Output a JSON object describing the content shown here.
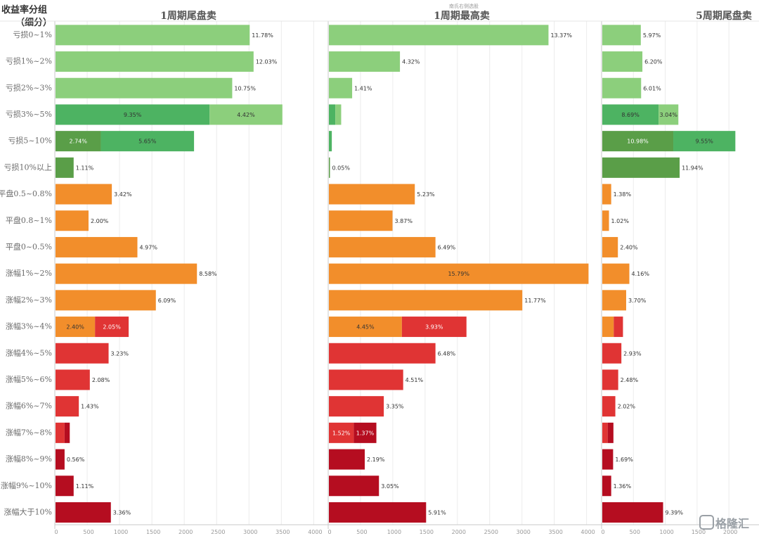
{
  "corner_title": "收益率分组",
  "corner_title_sub": "（细分）",
  "top_note": "南氏右侧选股",
  "watermark": "格隆汇",
  "colors": {
    "light_green": "#8ccf7c",
    "mid_green": "#4db362",
    "dark_green": "#5a9e48",
    "orange": "#f28e2b",
    "red": "#e03434",
    "dark_red": "#b50d20"
  },
  "chart_data": {
    "type": "bar",
    "orientation": "horizontal",
    "stacked": true,
    "categories": [
      "亏损0~1%",
      "亏损1%~2%",
      "亏损2%~3%",
      "亏损3%~5%",
      "亏损5~10%",
      "亏损10%以上",
      "平盘0.5~0.8%",
      "平盘0.8~1%",
      "平盘0~0.5%",
      "涨幅1%~2%",
      "涨幅2%~3%",
      "涨幅3%~4%",
      "涨幅4%~5%",
      "涨幅5%~6%",
      "涨幅6%~7%",
      "涨幅7%~8%",
      "涨幅8%~9%",
      "涨幅9%~10%",
      "涨幅大于10%"
    ],
    "panels": [
      {
        "title": "1周期尾盘卖",
        "xlim": [
          0,
          4000
        ],
        "ticks": [
          "0",
          "500",
          "1000",
          "1500",
          "2000",
          "2500",
          "3000",
          "3500",
          "4000"
        ],
        "rows": [
          [
            {
              "v": 3000,
              "c": "light_green",
              "label": "11.78%"
            }
          ],
          [
            {
              "v": 3060,
              "c": "light_green",
              "label": "12.03%"
            }
          ],
          [
            {
              "v": 2730,
              "c": "light_green",
              "label": "10.75%"
            }
          ],
          [
            {
              "v": 2380,
              "c": "mid_green",
              "label": "9.35%",
              "in": true
            },
            {
              "v": 1125,
              "c": "light_green",
              "label": "4.42%",
              "in": true
            }
          ],
          [
            {
              "v": 700,
              "c": "dark_green",
              "label": "2.74%",
              "in": true,
              "white": true
            },
            {
              "v": 1440,
              "c": "mid_green",
              "label": "5.65%",
              "in": true
            }
          ],
          [
            {
              "v": 280,
              "c": "dark_green",
              "label": "1.11%"
            }
          ],
          [
            {
              "v": 870,
              "c": "orange",
              "label": "3.42%"
            }
          ],
          [
            {
              "v": 510,
              "c": "orange",
              "label": "2.00%"
            }
          ],
          [
            {
              "v": 1265,
              "c": "orange",
              "label": "4.97%"
            }
          ],
          [
            {
              "v": 2185,
              "c": "orange",
              "label": "8.58%"
            }
          ],
          [
            {
              "v": 1550,
              "c": "orange",
              "label": "6.09%"
            }
          ],
          [
            {
              "v": 610,
              "c": "orange",
              "label": "2.40%",
              "in": true
            },
            {
              "v": 520,
              "c": "red",
              "label": "2.05%",
              "in": true,
              "white": true
            }
          ],
          [
            {
              "v": 820,
              "c": "red",
              "label": "3.23%"
            }
          ],
          [
            {
              "v": 530,
              "c": "red",
              "label": "2.08%"
            }
          ],
          [
            {
              "v": 360,
              "c": "red",
              "label": "1.43%"
            }
          ],
          [
            {
              "v": 140,
              "c": "red"
            },
            {
              "v": 80,
              "c": "dark_red"
            }
          ],
          [
            {
              "v": 140,
              "c": "dark_red",
              "label": "0.56%"
            }
          ],
          [
            {
              "v": 280,
              "c": "dark_red",
              "label": "1.11%"
            }
          ],
          [
            {
              "v": 855,
              "c": "dark_red",
              "label": "3.36%"
            }
          ]
        ]
      },
      {
        "title": "1周期最高卖",
        "xlim": [
          0,
          4000
        ],
        "ticks": [
          "0",
          "500",
          "1000",
          "1500",
          "2000",
          "2500",
          "3000",
          "3500",
          "4000"
        ],
        "rows": [
          [
            {
              "v": 3400,
              "c": "light_green",
              "label": "13.37%"
            }
          ],
          [
            {
              "v": 1100,
              "c": "light_green",
              "label": "4.32%"
            }
          ],
          [
            {
              "v": 360,
              "c": "light_green",
              "label": "1.41%"
            }
          ],
          [
            {
              "v": 100,
              "c": "mid_green"
            },
            {
              "v": 90,
              "c": "light_green"
            }
          ],
          [
            {
              "v": 45,
              "c": "mid_green"
            }
          ],
          [
            {
              "v": 12,
              "c": "dark_green",
              "label": "0.05%"
            }
          ],
          [
            {
              "v": 1330,
              "c": "orange",
              "label": "5.23%"
            }
          ],
          [
            {
              "v": 985,
              "c": "orange",
              "label": "3.87%"
            }
          ],
          [
            {
              "v": 1650,
              "c": "orange",
              "label": "6.49%"
            }
          ],
          [
            {
              "v": 4020,
              "c": "orange",
              "label": "15.79%",
              "in": true
            }
          ],
          [
            {
              "v": 2995,
              "c": "orange",
              "label": "11.77%"
            }
          ],
          [
            {
              "v": 1130,
              "c": "orange",
              "label": "4.45%",
              "in": true
            },
            {
              "v": 1000,
              "c": "red",
              "label": "3.93%",
              "in": true,
              "white": true
            }
          ],
          [
            {
              "v": 1650,
              "c": "red",
              "label": "6.48%"
            }
          ],
          [
            {
              "v": 1150,
              "c": "red",
              "label": "4.51%"
            }
          ],
          [
            {
              "v": 850,
              "c": "red",
              "label": "3.35%"
            }
          ],
          [
            {
              "v": 385,
              "c": "red",
              "label": "1.52%",
              "in": true,
              "white": true
            },
            {
              "v": 350,
              "c": "dark_red",
              "label": "1.37%",
              "in": true,
              "white": true
            }
          ],
          [
            {
              "v": 555,
              "c": "dark_red",
              "label": "2.19%"
            }
          ],
          [
            {
              "v": 775,
              "c": "dark_red",
              "label": "3.05%"
            }
          ],
          [
            {
              "v": 1505,
              "c": "dark_red",
              "label": "5.91%"
            }
          ]
        ]
      },
      {
        "title": "5周期尾盘卖",
        "xlim": [
          0,
          2400
        ],
        "ticks": [
          "0",
          "500",
          "1000",
          "1500",
          "2000",
          "2"
        ],
        "rows": [
          [
            {
              "v": 605,
              "c": "light_green",
              "label": "5.97%"
            }
          ],
          [
            {
              "v": 630,
              "c": "light_green",
              "label": "6.20%"
            }
          ],
          [
            {
              "v": 610,
              "c": "light_green",
              "label": "6.01%"
            }
          ],
          [
            {
              "v": 885,
              "c": "mid_green",
              "label": "8.69%",
              "in": true
            },
            {
              "v": 310,
              "c": "light_green",
              "label": "3.04%",
              "in": true
            }
          ],
          [
            {
              "v": 1115,
              "c": "dark_green",
              "label": "10.98%",
              "in": true,
              "white": true
            },
            {
              "v": 975,
              "c": "mid_green",
              "label": "9.55%",
              "in": true
            }
          ],
          [
            {
              "v": 1215,
              "c": "dark_green",
              "label": "11.94%"
            }
          ],
          [
            {
              "v": 140,
              "c": "orange",
              "label": "1.38%"
            }
          ],
          [
            {
              "v": 105,
              "c": "orange",
              "label": "1.02%"
            }
          ],
          [
            {
              "v": 245,
              "c": "orange",
              "label": "2.40%"
            }
          ],
          [
            {
              "v": 425,
              "c": "orange",
              "label": "4.16%"
            }
          ],
          [
            {
              "v": 375,
              "c": "orange",
              "label": "3.70%"
            }
          ],
          [
            {
              "v": 180,
              "c": "orange"
            },
            {
              "v": 145,
              "c": "red"
            }
          ],
          [
            {
              "v": 300,
              "c": "red",
              "label": "2.93%"
            }
          ],
          [
            {
              "v": 250,
              "c": "red",
              "label": "2.48%"
            }
          ],
          [
            {
              "v": 205,
              "c": "red",
              "label": "2.02%"
            }
          ],
          [
            {
              "v": 85,
              "c": "red"
            },
            {
              "v": 90,
              "c": "dark_red"
            }
          ],
          [
            {
              "v": 170,
              "c": "dark_red",
              "label": "1.69%"
            }
          ],
          [
            {
              "v": 140,
              "c": "dark_red",
              "label": "1.36%"
            }
          ],
          [
            {
              "v": 955,
              "c": "dark_red",
              "label": "9.39%"
            }
          ]
        ]
      }
    ]
  }
}
